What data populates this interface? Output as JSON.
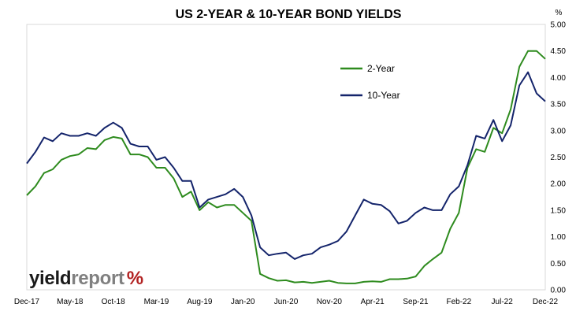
{
  "chart_data": {
    "type": "line",
    "title": "US 2-YEAR & 10-YEAR BOND YIELDS",
    "ylabel": "%",
    "ylim": [
      0,
      5
    ],
    "yticks": [
      "0.00",
      "0.50",
      "1.00",
      "1.50",
      "2.00",
      "2.50",
      "3.00",
      "3.50",
      "4.00",
      "4.50",
      "5.00"
    ],
    "xlim": [
      "2017-12",
      "2022-12"
    ],
    "xticks": [
      {
        "label": "Dec-17",
        "date": "2017-12"
      },
      {
        "label": "May-18",
        "date": "2018-05"
      },
      {
        "label": "Oct-18",
        "date": "2018-10"
      },
      {
        "label": "Mar-19",
        "date": "2019-03"
      },
      {
        "label": "Aug-19",
        "date": "2019-08"
      },
      {
        "label": "Jan-20",
        "date": "2020-01"
      },
      {
        "label": "Jun-20",
        "date": "2020-06"
      },
      {
        "label": "Nov-20",
        "date": "2020-11"
      },
      {
        "label": "Apr-21",
        "date": "2021-04"
      },
      {
        "label": "Sep-21",
        "date": "2021-09"
      },
      {
        "label": "Feb-22",
        "date": "2022-02"
      },
      {
        "label": "Jul-22",
        "date": "2022-07"
      },
      {
        "label": "Dec-22",
        "date": "2022-12"
      }
    ],
    "grid": false,
    "legend": "inside-top-right",
    "series": [
      {
        "name": "2-Year",
        "color": "#2e8b1e",
        "points": [
          [
            "2017-12",
            1.78
          ],
          [
            "2018-01",
            1.95
          ],
          [
            "2018-02",
            2.2
          ],
          [
            "2018-03",
            2.27
          ],
          [
            "2018-04",
            2.45
          ],
          [
            "2018-05",
            2.52
          ],
          [
            "2018-06",
            2.55
          ],
          [
            "2018-07",
            2.67
          ],
          [
            "2018-08",
            2.65
          ],
          [
            "2018-09",
            2.82
          ],
          [
            "2018-10",
            2.88
          ],
          [
            "2018-11",
            2.85
          ],
          [
            "2018-12",
            2.55
          ],
          [
            "2019-01",
            2.55
          ],
          [
            "2019-02",
            2.5
          ],
          [
            "2019-03",
            2.3
          ],
          [
            "2019-04",
            2.3
          ],
          [
            "2019-05",
            2.1
          ],
          [
            "2019-06",
            1.75
          ],
          [
            "2019-07",
            1.85
          ],
          [
            "2019-08",
            1.5
          ],
          [
            "2019-09",
            1.65
          ],
          [
            "2019-10",
            1.55
          ],
          [
            "2019-11",
            1.6
          ],
          [
            "2019-12",
            1.6
          ],
          [
            "2020-01",
            1.45
          ],
          [
            "2020-02",
            1.3
          ],
          [
            "2020-03",
            0.3
          ],
          [
            "2020-04",
            0.22
          ],
          [
            "2020-05",
            0.17
          ],
          [
            "2020-06",
            0.18
          ],
          [
            "2020-07",
            0.14
          ],
          [
            "2020-08",
            0.15
          ],
          [
            "2020-09",
            0.13
          ],
          [
            "2020-10",
            0.15
          ],
          [
            "2020-11",
            0.17
          ],
          [
            "2020-12",
            0.13
          ],
          [
            "2021-01",
            0.12
          ],
          [
            "2021-02",
            0.12
          ],
          [
            "2021-03",
            0.15
          ],
          [
            "2021-04",
            0.16
          ],
          [
            "2021-05",
            0.15
          ],
          [
            "2021-06",
            0.2
          ],
          [
            "2021-07",
            0.2
          ],
          [
            "2021-08",
            0.21
          ],
          [
            "2021-09",
            0.25
          ],
          [
            "2021-10",
            0.45
          ],
          [
            "2021-11",
            0.58
          ],
          [
            "2021-12",
            0.7
          ],
          [
            "2022-01",
            1.15
          ],
          [
            "2022-02",
            1.45
          ],
          [
            "2022-03",
            2.3
          ],
          [
            "2022-04",
            2.65
          ],
          [
            "2022-05",
            2.6
          ],
          [
            "2022-06",
            3.05
          ],
          [
            "2022-07",
            2.95
          ],
          [
            "2022-08",
            3.4
          ],
          [
            "2022-09",
            4.2
          ],
          [
            "2022-10",
            4.5
          ],
          [
            "2022-11",
            4.5
          ],
          [
            "2022-12",
            4.35
          ]
        ]
      },
      {
        "name": "10-Year",
        "color": "#14246b",
        "points": [
          [
            "2017-12",
            2.38
          ],
          [
            "2018-01",
            2.6
          ],
          [
            "2018-02",
            2.87
          ],
          [
            "2018-03",
            2.8
          ],
          [
            "2018-04",
            2.95
          ],
          [
            "2018-05",
            2.9
          ],
          [
            "2018-06",
            2.9
          ],
          [
            "2018-07",
            2.95
          ],
          [
            "2018-08",
            2.9
          ],
          [
            "2018-09",
            3.05
          ],
          [
            "2018-10",
            3.15
          ],
          [
            "2018-11",
            3.05
          ],
          [
            "2018-12",
            2.75
          ],
          [
            "2019-01",
            2.7
          ],
          [
            "2019-02",
            2.7
          ],
          [
            "2019-03",
            2.45
          ],
          [
            "2019-04",
            2.5
          ],
          [
            "2019-05",
            2.3
          ],
          [
            "2019-06",
            2.05
          ],
          [
            "2019-07",
            2.05
          ],
          [
            "2019-08",
            1.55
          ],
          [
            "2019-09",
            1.7
          ],
          [
            "2019-10",
            1.75
          ],
          [
            "2019-11",
            1.8
          ],
          [
            "2019-12",
            1.9
          ],
          [
            "2020-01",
            1.75
          ],
          [
            "2020-02",
            1.4
          ],
          [
            "2020-03",
            0.8
          ],
          [
            "2020-04",
            0.65
          ],
          [
            "2020-05",
            0.68
          ],
          [
            "2020-06",
            0.7
          ],
          [
            "2020-07",
            0.58
          ],
          [
            "2020-08",
            0.65
          ],
          [
            "2020-09",
            0.68
          ],
          [
            "2020-10",
            0.8
          ],
          [
            "2020-11",
            0.85
          ],
          [
            "2020-12",
            0.92
          ],
          [
            "2021-01",
            1.1
          ],
          [
            "2021-02",
            1.4
          ],
          [
            "2021-03",
            1.7
          ],
          [
            "2021-04",
            1.62
          ],
          [
            "2021-05",
            1.6
          ],
          [
            "2021-06",
            1.48
          ],
          [
            "2021-07",
            1.25
          ],
          [
            "2021-08",
            1.3
          ],
          [
            "2021-09",
            1.45
          ],
          [
            "2021-10",
            1.55
          ],
          [
            "2021-11",
            1.5
          ],
          [
            "2021-12",
            1.5
          ],
          [
            "2022-01",
            1.8
          ],
          [
            "2022-02",
            1.95
          ],
          [
            "2022-03",
            2.35
          ],
          [
            "2022-04",
            2.9
          ],
          [
            "2022-05",
            2.85
          ],
          [
            "2022-06",
            3.2
          ],
          [
            "2022-07",
            2.8
          ],
          [
            "2022-08",
            3.1
          ],
          [
            "2022-09",
            3.85
          ],
          [
            "2022-10",
            4.1
          ],
          [
            "2022-11",
            3.7
          ],
          [
            "2022-12",
            3.55
          ]
        ]
      }
    ]
  },
  "logo": {
    "dark": "yield",
    "light": "report",
    "symbol": "%"
  }
}
